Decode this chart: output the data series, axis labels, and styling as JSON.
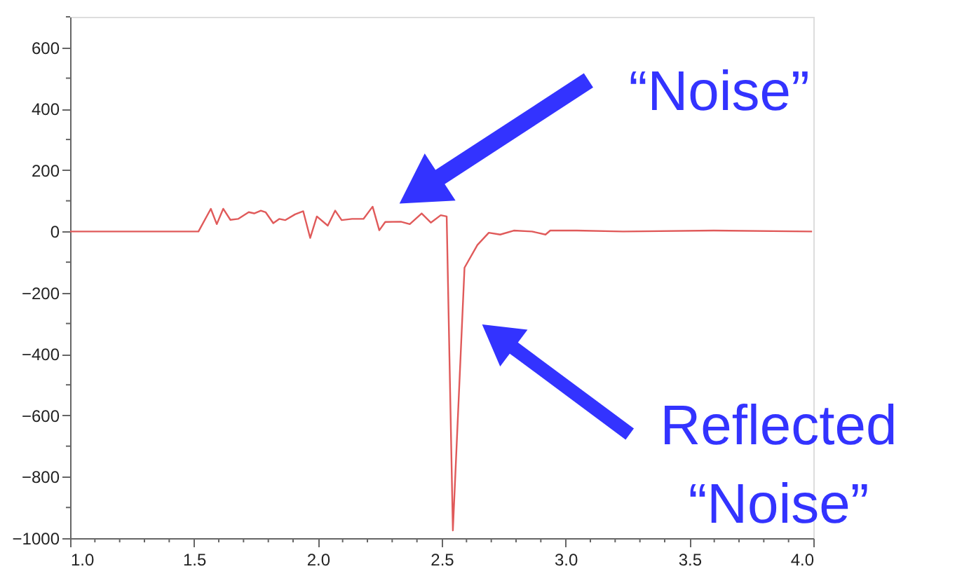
{
  "chart_data": {
    "type": "line",
    "x": [
      1.0,
      1.518,
      1.568,
      1.592,
      1.618,
      1.647,
      1.678,
      1.721,
      1.743,
      1.77,
      1.789,
      1.82,
      1.844,
      1.868,
      1.908,
      1.941,
      1.969,
      1.996,
      2.04,
      2.07,
      2.096,
      2.138,
      2.184,
      2.221,
      2.248,
      2.272,
      2.335,
      2.371,
      2.419,
      2.456,
      2.496,
      2.52,
      2.545,
      2.592,
      2.644,
      2.69,
      2.736,
      2.791,
      2.864,
      2.919,
      2.938,
      3.046,
      3.232,
      3.598,
      3.995
    ],
    "series": [
      {
        "color": "#e05a5a",
        "values": [
          0,
          0,
          74,
          24,
          74,
          38,
          41,
          63,
          59,
          68,
          63,
          27,
          41,
          37,
          56,
          66,
          -21,
          49,
          19,
          68,
          37,
          41,
          41,
          81,
          4,
          31,
          32,
          24,
          59,
          29,
          53,
          49,
          -975,
          -118,
          -44,
          -4,
          -10,
          3,
          0,
          -10,
          3,
          3,
          0,
          3,
          0
        ]
      }
    ],
    "xlim": [
      1.0,
      4.0
    ],
    "ylim": [
      -1000,
      700
    ],
    "xticks": [
      {
        "value": 1,
        "label": "1.0"
      },
      1.5,
      {
        "value": 2,
        "label": "2.0"
      },
      2.5,
      {
        "value": 3,
        "label": "3.0"
      },
      3.5,
      {
        "value": 4,
        "label": "4.0"
      }
    ],
    "yticks": [
      {
        "value": -1000,
        "label": "−1000"
      },
      {
        "value": -800,
        "label": "−800"
      },
      {
        "value": -600,
        "label": "−600"
      },
      {
        "value": -400,
        "label": "−400"
      },
      {
        "value": -200,
        "label": "−200"
      },
      0,
      200,
      400,
      600
    ],
    "annotations": [
      "“Noise”",
      "Reflected “Noise”"
    ],
    "grid": false,
    "marker": "none",
    "line_style": "solid"
  }
}
